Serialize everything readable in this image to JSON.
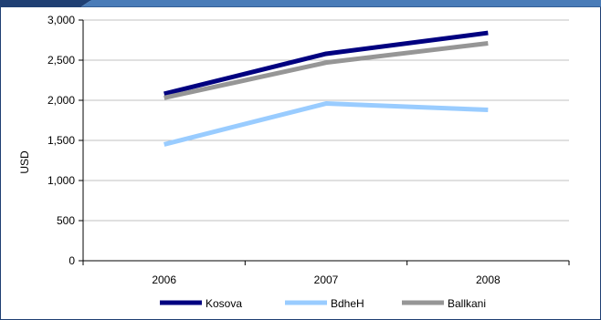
{
  "chart_data": {
    "type": "line",
    "title": "",
    "xlabel": "",
    "ylabel": "USD",
    "categories": [
      "2006",
      "2007",
      "2008"
    ],
    "ylim": [
      0,
      3000
    ],
    "yticks": [
      0,
      500,
      1000,
      1500,
      2000,
      2500,
      3000
    ],
    "ytick_labels": [
      "0",
      "500",
      "1,000",
      "1,500",
      "2,000",
      "2,500",
      "3,000"
    ],
    "grid": true,
    "legend_position": "bottom",
    "series": [
      {
        "name": "Kosova",
        "values": [
          2080,
          2580,
          2840
        ],
        "color": "#000080"
      },
      {
        "name": "BdheH",
        "values": [
          1450,
          1960,
          1880
        ],
        "color": "#99ccff"
      },
      {
        "name": "Ballkani",
        "values": [
          2030,
          2470,
          2710
        ],
        "color": "#969696"
      }
    ]
  },
  "colors": {
    "frame": "#1f3f73",
    "top_band": "#4a7cb8",
    "gridline": "#c0c0c0",
    "axis": "#000000"
  }
}
